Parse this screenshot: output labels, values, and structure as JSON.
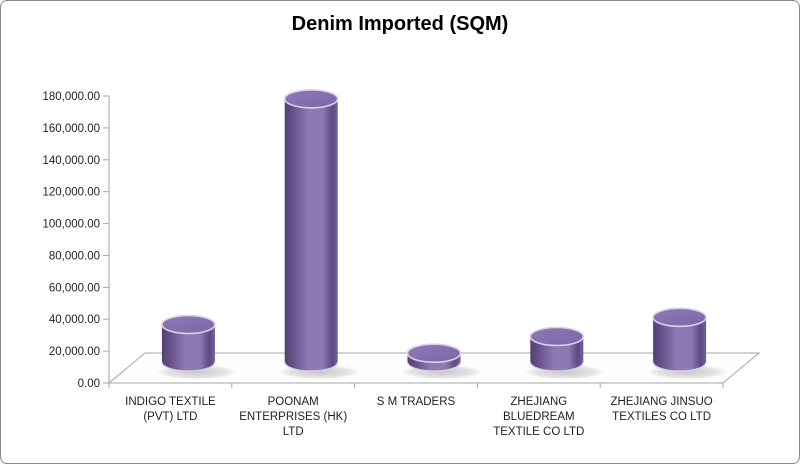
{
  "window": {
    "background": "#ffffff",
    "border_color": "#8a8a8a"
  },
  "chart_data": {
    "type": "bar",
    "subtype": "3d-cylinder",
    "title": "Denim Imported (SQM)",
    "categories": [
      "INDIGO TEXTILE (PVT) LTD",
      "POONAM ENTERPRISES (HK) LTD",
      "S M TRADERS",
      "ZHEJIANG BLUEDREAM TEXTILE CO LTD",
      "ZHEJIANG JINSUO TEXTILES CO LTD"
    ],
    "category_label_lines": [
      [
        "INDIGO TEXTILE",
        "(PVT) LTD"
      ],
      [
        "POONAM",
        "ENTERPRISES  (HK)",
        "LTD"
      ],
      [
        "S M TRADERS"
      ],
      [
        "ZHEJIANG",
        "BLUEDREAM",
        "TEXTILE CO LTD"
      ],
      [
        "ZHEJIANG JINSUO",
        "TEXTILES CO LTD"
      ]
    ],
    "values": [
      23500,
      165000,
      5500,
      16000,
      28000
    ],
    "ylim": [
      0,
      180000
    ],
    "y_tick_step": 20000,
    "y_tick_labels": [
      "0.00",
      "20,000.00",
      "40,000.00",
      "60,000.00",
      "80,000.00",
      "100,000.00",
      "120,000.00",
      "140,000.00",
      "160,000.00",
      "180,000.00"
    ],
    "xlabel": "",
    "ylabel": "",
    "grid": false,
    "legend": "none",
    "colors": {
      "bar_edge_dark": "#53406f",
      "bar_side_dark": "#5d4a80",
      "bar_side_light": "#8f78b6",
      "bar_side_mid": "#6f5a97",
      "bar_top_fill": "#7d66a8",
      "bar_rim_light": "#d9d3e5",
      "axis_line": "#a6a6a6",
      "tick_label": "#1f1f1f",
      "title_color": "#000000",
      "shadow": "#9a9a9a"
    }
  }
}
